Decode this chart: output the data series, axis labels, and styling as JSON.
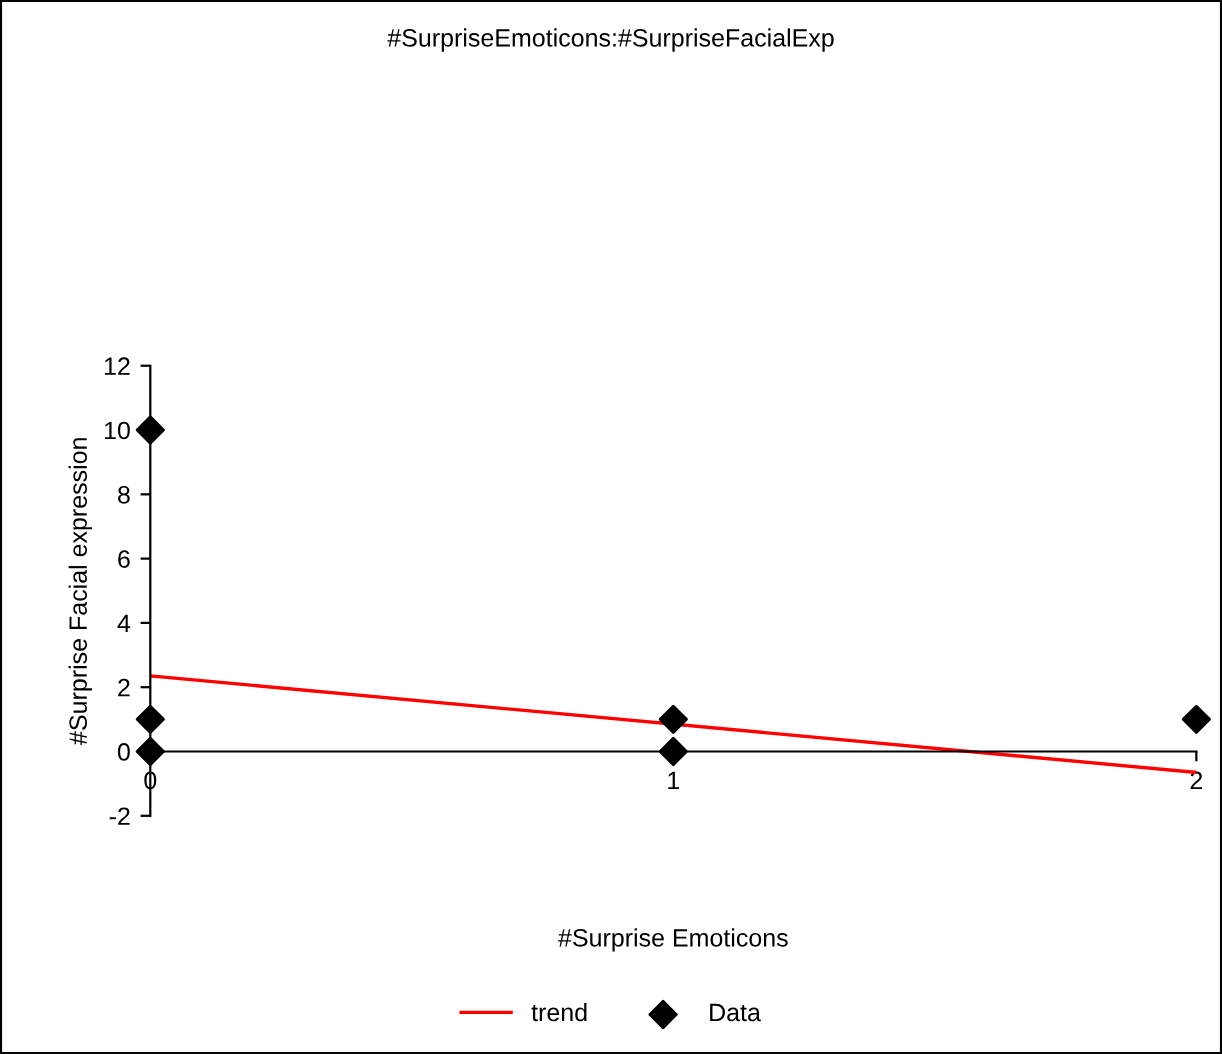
{
  "chart_data": {
    "type": "scatter",
    "title": "#SurpriseEmoticons:#SurpriseFacialExp",
    "xlabel": "#Surprise Emoticons",
    "ylabel": "#Surprise Facial expression",
    "series": [
      {
        "name": "trend",
        "type": "line",
        "color": "#ff0000",
        "x": [
          0,
          2
        ],
        "values": [
          2.35,
          -0.65
        ]
      },
      {
        "name": "Data",
        "color": "#000000",
        "marker": "diamond",
        "x": [
          0,
          0,
          0,
          1,
          1,
          2
        ],
        "values": [
          10,
          1,
          0,
          1,
          0,
          1
        ]
      }
    ],
    "xlim": [
      0,
      2
    ],
    "xticks": [
      0,
      1,
      2
    ],
    "ylim": [
      -2,
      12
    ],
    "yticks": [
      -2,
      0,
      2,
      4,
      6,
      8,
      10,
      12
    ],
    "grid": false,
    "legend": "bottom"
  }
}
